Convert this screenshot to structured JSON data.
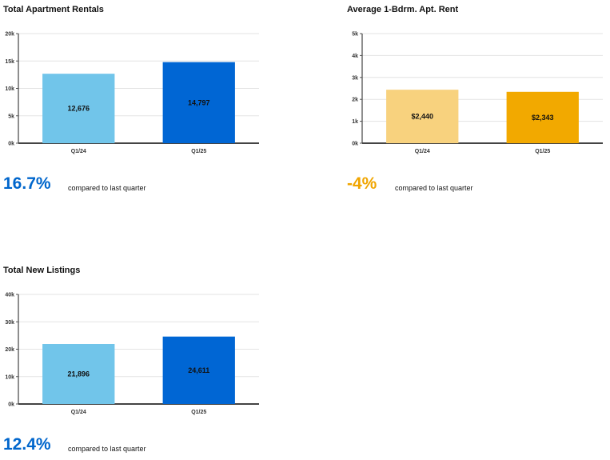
{
  "panels": [
    {
      "title": "Total Apartment Rentals",
      "stat": {
        "value": "16.7%",
        "caption": "compared to last quarter",
        "color": "#0066cc"
      },
      "chart_data": {
        "type": "bar",
        "categories": [
          "Q1/24",
          "Q1/25"
        ],
        "values": [
          12676,
          14797
        ],
        "value_labels": [
          "12,676",
          "14,797"
        ],
        "bar_colors": [
          "#71c5ea",
          "#0066d4"
        ],
        "ylim": [
          0,
          20000
        ],
        "yticks": [
          0,
          5000,
          10000,
          15000,
          20000
        ],
        "ytick_labels": [
          "0k",
          "5k",
          "10k",
          "15k",
          "20k"
        ],
        "grid": true
      }
    },
    {
      "title": "Average 1-Bdrm. Apt. Rent",
      "stat": {
        "value": "-4%",
        "caption": "compared to last quarter",
        "color": "#f0a500"
      },
      "chart_data": {
        "type": "bar",
        "categories": [
          "Q1/24",
          "Q1/25"
        ],
        "values": [
          2440,
          2343
        ],
        "value_labels": [
          "$2,440",
          "$2,343"
        ],
        "bar_colors": [
          "#f8d27e",
          "#f2a900"
        ],
        "ylim": [
          0,
          5000
        ],
        "yticks": [
          0,
          1000,
          2000,
          3000,
          4000,
          5000
        ],
        "ytick_labels": [
          "0k",
          "1k",
          "2k",
          "3k",
          "4k",
          "5k"
        ],
        "grid": true
      }
    },
    {
      "title": "Total New Listings",
      "stat": {
        "value": "12.4%",
        "caption": "compared to last quarter",
        "color": "#0066cc"
      },
      "chart_data": {
        "type": "bar",
        "categories": [
          "Q1/24",
          "Q1/25"
        ],
        "values": [
          21896,
          24611
        ],
        "value_labels": [
          "21,896",
          "24,611"
        ],
        "bar_colors": [
          "#71c5ea",
          "#0066d4"
        ],
        "ylim": [
          0,
          40000
        ],
        "yticks": [
          0,
          10000,
          20000,
          30000,
          40000
        ],
        "ytick_labels": [
          "0k",
          "10k",
          "20k",
          "30k",
          "40k"
        ],
        "grid": true
      }
    }
  ]
}
